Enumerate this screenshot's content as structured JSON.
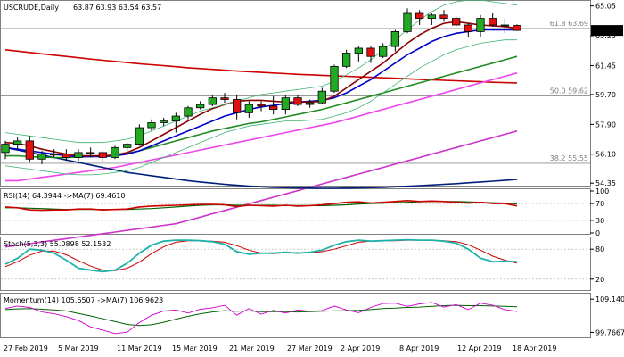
{
  "chart_data": {
    "type": "candlestick",
    "symbol_label": "USCRUDE,Daily",
    "ohlc_readout": "63.87 63.93 63.54 63.57",
    "price_tag": "63.57",
    "price_axis_labels": [
      "65.05",
      "63.25",
      "61.45",
      "59.70",
      "57.90",
      "56.10",
      "54.35"
    ],
    "date_labels": [
      "27 Feb 2019",
      "5 Mar 2019",
      "11 Mar 2019",
      "15 Mar 2019",
      "21 Mar 2019",
      "27 Mar 2019",
      "2 Apr 2019",
      "8 Apr 2019",
      "12 Apr 2019",
      "18 Apr 2019"
    ],
    "fib_levels": [
      {
        "label": "61.8 63.69",
        "value": 63.69
      },
      {
        "label": "50.0 59.62",
        "value": 59.62
      },
      {
        "label": "38.2 55.55",
        "value": 55.55
      }
    ],
    "price_range": [
      54.2,
      65.3
    ],
    "candles": [
      {
        "o": 56.2,
        "h": 56.9,
        "l": 55.8,
        "c": 56.7
      },
      {
        "o": 56.7,
        "h": 57.1,
        "l": 56.4,
        "c": 56.9
      },
      {
        "o": 56.9,
        "h": 57.2,
        "l": 55.6,
        "c": 55.8
      },
      {
        "o": 55.8,
        "h": 56.3,
        "l": 55.5,
        "c": 56.1
      },
      {
        "o": 56.1,
        "h": 56.4,
        "l": 55.9,
        "c": 56.1
      },
      {
        "o": 56.1,
        "h": 56.4,
        "l": 55.7,
        "c": 55.9
      },
      {
        "o": 55.9,
        "h": 56.4,
        "l": 55.7,
        "c": 56.2
      },
      {
        "o": 56.2,
        "h": 56.5,
        "l": 55.9,
        "c": 56.2
      },
      {
        "o": 56.2,
        "h": 56.3,
        "l": 55.6,
        "c": 55.9
      },
      {
        "o": 55.9,
        "h": 56.6,
        "l": 55.8,
        "c": 56.5
      },
      {
        "o": 56.5,
        "h": 56.8,
        "l": 56.3,
        "c": 56.7
      },
      {
        "o": 56.7,
        "h": 57.9,
        "l": 56.6,
        "c": 57.7
      },
      {
        "o": 57.7,
        "h": 58.2,
        "l": 57.5,
        "c": 58.0
      },
      {
        "o": 58.0,
        "h": 58.3,
        "l": 57.8,
        "c": 58.1
      },
      {
        "o": 58.1,
        "h": 58.6,
        "l": 57.4,
        "c": 58.4
      },
      {
        "o": 58.4,
        "h": 59.0,
        "l": 58.2,
        "c": 58.9
      },
      {
        "o": 58.9,
        "h": 59.3,
        "l": 58.8,
        "c": 59.1
      },
      {
        "o": 59.1,
        "h": 59.7,
        "l": 59.0,
        "c": 59.5
      },
      {
        "o": 59.5,
        "h": 59.8,
        "l": 59.2,
        "c": 59.4
      },
      {
        "o": 59.4,
        "h": 59.7,
        "l": 58.2,
        "c": 58.6
      },
      {
        "o": 58.6,
        "h": 59.3,
        "l": 58.3,
        "c": 59.1
      },
      {
        "o": 59.1,
        "h": 59.3,
        "l": 58.7,
        "c": 59.0
      },
      {
        "o": 59.0,
        "h": 59.6,
        "l": 58.5,
        "c": 58.8
      },
      {
        "o": 58.8,
        "h": 59.7,
        "l": 58.5,
        "c": 59.5
      },
      {
        "o": 59.5,
        "h": 59.7,
        "l": 59.0,
        "c": 59.1
      },
      {
        "o": 59.1,
        "h": 59.4,
        "l": 58.9,
        "c": 59.2
      },
      {
        "o": 59.2,
        "h": 60.1,
        "l": 59.1,
        "c": 59.9
      },
      {
        "o": 59.9,
        "h": 61.5,
        "l": 59.8,
        "c": 61.4
      },
      {
        "o": 61.4,
        "h": 62.4,
        "l": 61.3,
        "c": 62.2
      },
      {
        "o": 62.2,
        "h": 62.6,
        "l": 61.7,
        "c": 62.5
      },
      {
        "o": 62.5,
        "h": 62.6,
        "l": 61.6,
        "c": 62.0
      },
      {
        "o": 62.0,
        "h": 62.8,
        "l": 61.9,
        "c": 62.6
      },
      {
        "o": 62.6,
        "h": 63.6,
        "l": 62.3,
        "c": 63.5
      },
      {
        "o": 63.5,
        "h": 64.9,
        "l": 63.4,
        "c": 64.6
      },
      {
        "o": 64.6,
        "h": 64.8,
        "l": 63.9,
        "c": 64.3
      },
      {
        "o": 64.3,
        "h": 64.6,
        "l": 63.9,
        "c": 64.5
      },
      {
        "o": 64.5,
        "h": 64.8,
        "l": 64.1,
        "c": 64.3
      },
      {
        "o": 64.3,
        "h": 64.4,
        "l": 63.8,
        "c": 63.9
      },
      {
        "o": 63.9,
        "h": 64.0,
        "l": 63.2,
        "c": 63.5
      },
      {
        "o": 63.5,
        "h": 64.5,
        "l": 63.2,
        "c": 64.3
      },
      {
        "o": 64.3,
        "h": 64.6,
        "l": 63.8,
        "c": 63.9
      },
      {
        "o": 63.9,
        "h": 64.3,
        "l": 63.4,
        "c": 63.9
      },
      {
        "o": 63.87,
        "h": 63.93,
        "l": 63.54,
        "c": 63.57
      }
    ],
    "overlays": [
      {
        "color": "#cc0000",
        "values": [
          62.4,
          62.32,
          62.24,
          62.16,
          62.08,
          62.0,
          61.92,
          61.84,
          61.77,
          61.7,
          61.63,
          61.56,
          61.5,
          61.44,
          61.38,
          61.32,
          61.27,
          61.22,
          61.17,
          61.12,
          61.08,
          61.04,
          61.0,
          60.96,
          60.92,
          60.89,
          60.86,
          60.83,
          60.8,
          60.77,
          60.74,
          60.71,
          60.68,
          60.65,
          60.62,
          60.59,
          60.56,
          60.53,
          60.5,
          60.47,
          60.44,
          60.42,
          60.4
        ]
      },
      {
        "color": "#ee44ee",
        "values": [
          54.5,
          54.5,
          54.6,
          54.7,
          54.8,
          54.9,
          55.0,
          55.1,
          55.2,
          55.3,
          55.45,
          55.6,
          55.75,
          55.9,
          56.05,
          56.2,
          56.35,
          56.5,
          56.65,
          56.8,
          56.95,
          57.1,
          57.25,
          57.4,
          57.55,
          57.7,
          57.85,
          58.0,
          58.2,
          58.4,
          58.6,
          58.8,
          59.0,
          59.2,
          59.4,
          59.6,
          59.8,
          60.0,
          60.2,
          60.4,
          60.6,
          60.8,
          61.0
        ]
      },
      {
        "color": "#cc33cc",
        "values": [
          50.5,
          50.6,
          50.7,
          50.8,
          50.9,
          51.0,
          51.1,
          51.2,
          51.3,
          51.4,
          51.5,
          51.6,
          51.7,
          51.8,
          51.9,
          52.1,
          52.3,
          52.5,
          52.7,
          52.9,
          53.1,
          53.3,
          53.5,
          53.7,
          53.9,
          54.1,
          54.3,
          54.5,
          54.7,
          54.9,
          55.1,
          55.3,
          55.5,
          55.7,
          55.9,
          56.1,
          56.3,
          56.5,
          56.7,
          56.9,
          57.1,
          57.3,
          57.5
        ]
      },
      {
        "color": "#001f7a",
        "values": [
          56.5,
          56.35,
          56.2,
          56.05,
          55.9,
          55.75,
          55.6,
          55.45,
          55.3,
          55.15,
          55.0,
          54.9,
          54.8,
          54.7,
          54.6,
          54.5,
          54.42,
          54.35,
          54.28,
          54.22,
          54.17,
          54.13,
          54.1,
          54.08,
          54.06,
          54.05,
          54.04,
          54.04,
          54.05,
          54.06,
          54.08,
          54.1,
          54.13,
          54.16,
          54.2,
          54.24,
          54.28,
          54.32,
          54.37,
          54.42,
          54.47,
          54.52,
          54.58
        ]
      },
      {
        "color": "#228b22",
        "values": [
          56.0,
          56.0,
          55.95,
          55.92,
          55.9,
          55.9,
          55.92,
          55.95,
          56.0,
          56.05,
          56.15,
          56.3,
          56.5,
          56.7,
          56.9,
          57.1,
          57.3,
          57.5,
          57.65,
          57.8,
          57.95,
          58.05,
          58.2,
          58.35,
          58.5,
          58.65,
          58.8,
          59.0,
          59.2,
          59.4,
          59.6,
          59.8,
          60.0,
          60.2,
          60.4,
          60.6,
          60.8,
          61.0,
          61.2,
          61.4,
          61.6,
          61.8,
          62.0
        ]
      },
      {
        "color": "#0000cc",
        "values": [
          56.5,
          56.4,
          56.3,
          56.2,
          56.1,
          56.0,
          55.95,
          55.95,
          55.95,
          56.0,
          56.1,
          56.3,
          56.6,
          56.9,
          57.2,
          57.5,
          57.8,
          58.1,
          58.4,
          58.6,
          58.8,
          58.95,
          59.05,
          59.15,
          59.25,
          59.3,
          59.35,
          59.5,
          59.8,
          60.2,
          60.6,
          61.1,
          61.6,
          62.1,
          62.5,
          62.9,
          63.2,
          63.4,
          63.5,
          63.6,
          63.6,
          63.6,
          63.6
        ]
      },
      {
        "color": "#8b0000",
        "values": [
          56.8,
          56.75,
          56.6,
          56.4,
          56.25,
          56.1,
          56.0,
          56.0,
          56.0,
          56.05,
          56.2,
          56.5,
          56.9,
          57.3,
          57.7,
          58.1,
          58.5,
          58.85,
          59.1,
          59.3,
          59.35,
          59.35,
          59.3,
          59.25,
          59.25,
          59.25,
          59.3,
          59.6,
          60.1,
          60.6,
          61.1,
          61.6,
          62.2,
          62.8,
          63.3,
          63.7,
          64.0,
          64.1,
          64.0,
          63.9,
          63.85,
          63.8,
          63.7
        ]
      },
      {
        "color": "#3cb371",
        "values": [
          57.4,
          57.3,
          57.2,
          57.1,
          57.0,
          56.9,
          56.8,
          56.8,
          56.8,
          56.9,
          57.0,
          57.2,
          57.5,
          57.8,
          58.1,
          58.4,
          58.7,
          58.9,
          59.1,
          59.3,
          59.5,
          59.7,
          59.8,
          59.9,
          60.0,
          60.1,
          60.2,
          60.5,
          60.9,
          61.3,
          61.8,
          62.4,
          63.0,
          63.6,
          64.2,
          64.7,
          65.1,
          65.3,
          65.4,
          65.4,
          65.3,
          65.2,
          65.1
        ]
      },
      {
        "color": "#3cb371",
        "values": [
          55.4,
          55.3,
          55.2,
          55.1,
          55.0,
          54.9,
          54.85,
          54.85,
          54.9,
          55.0,
          55.1,
          55.3,
          55.6,
          55.9,
          56.2,
          56.5,
          56.8,
          57.1,
          57.4,
          57.6,
          57.8,
          57.9,
          58.0,
          58.1,
          58.1,
          58.15,
          58.2,
          58.4,
          58.6,
          58.9,
          59.3,
          59.8,
          60.3,
          60.8,
          61.3,
          61.7,
          62.1,
          62.4,
          62.6,
          62.8,
          62.9,
          63.0,
          63.0
        ]
      }
    ],
    "rsi": {
      "label": "RSI(14) 64.3944  ->MA(7) 69.4610",
      "range": [
        0,
        100
      ],
      "levels": [
        30,
        70
      ],
      "axis_labels": [
        "100",
        "70",
        "30",
        "0"
      ],
      "rsi_color": "#cc0000",
      "ma_color": "#006400",
      "rsi_values": [
        62,
        60,
        55,
        54,
        55,
        55,
        57,
        57,
        55,
        56,
        57,
        62,
        64,
        65,
        66,
        67,
        68,
        68,
        67,
        63,
        66,
        65,
        64,
        66,
        64,
        65,
        67,
        70,
        73,
        74,
        71,
        73,
        75,
        77,
        75,
        76,
        75,
        73,
        71,
        73,
        70,
        70,
        64.3944
      ],
      "ma_values": [
        60,
        60,
        59,
        58,
        57,
        56,
        56,
        56,
        56,
        56,
        56,
        57,
        58,
        60,
        62,
        64,
        66,
        67,
        67,
        66,
        66,
        66,
        66,
        65,
        65,
        65,
        65,
        66,
        67,
        69,
        70,
        71,
        72,
        73,
        74,
        75,
        75,
        75,
        74,
        73,
        72,
        71,
        69.461
      ]
    },
    "stoch": {
      "label": "Stoch(5,3,3) 55.0898 52.1532",
      "range": [
        0,
        100
      ],
      "levels": [
        20,
        80
      ],
      "axis_labels": [
        "80",
        "20"
      ],
      "k_color": "#20b2aa",
      "d_color": "#cc0000",
      "k_values": [
        50,
        62,
        80,
        78,
        72,
        58,
        42,
        38,
        35,
        38,
        52,
        72,
        88,
        96,
        98,
        98,
        97,
        95,
        90,
        75,
        70,
        72,
        72,
        74,
        72,
        74,
        78,
        88,
        95,
        98,
        96,
        97,
        98,
        99,
        98,
        98,
        96,
        92,
        80,
        62,
        55,
        56,
        55.0898
      ],
      "d_values": [
        45,
        55,
        68,
        76,
        76,
        69,
        57,
        46,
        38,
        37,
        42,
        54,
        71,
        85,
        94,
        97,
        97,
        96,
        94,
        87,
        78,
        72,
        71,
        73,
        73,
        73,
        75,
        80,
        87,
        94,
        96,
        97,
        97,
        98,
        98,
        98,
        97,
        95,
        89,
        78,
        66,
        58,
        52.1532
      ]
    },
    "momentum": {
      "label": "Momentum(14) 105.6507  ->MA(7) 106.9623",
      "axis_labels": [
        "109.1408",
        "99.7667"
      ],
      "range": [
        98.6,
        110.2
      ],
      "mom_color": "#cc00cc",
      "ma_color": "#006400",
      "mom_values": [
        106.5,
        107.2,
        106.8,
        105.5,
        105.0,
        104.2,
        103.1,
        101.3,
        100.4,
        99.4,
        99.8,
        102.5,
        104.6,
        105.8,
        106.1,
        105.2,
        106.3,
        106.7,
        107.4,
        104.6,
        106.5,
        104.9,
        106.0,
        105.2,
        106.1,
        105.7,
        105.9,
        107.2,
        106.1,
        105.3,
        106.8,
        107.9,
        108.0,
        107.1,
        107.8,
        108.2,
        106.9,
        107.6,
        106.2,
        108.0,
        107.4,
        106.2,
        105.6507
      ],
      "ma_values": [
        106.2,
        106.4,
        106.5,
        106.3,
        106.1,
        105.8,
        105.1,
        104.4,
        103.6,
        102.8,
        102.0,
        101.7,
        101.9,
        102.6,
        103.5,
        104.3,
        105.0,
        105.5,
        105.9,
        105.7,
        105.8,
        105.6,
        105.6,
        105.6,
        105.5,
        105.6,
        105.7,
        105.8,
        105.9,
        106.0,
        106.2,
        106.5,
        106.6,
        106.8,
        106.9,
        107.1,
        107.3,
        107.4,
        107.3,
        107.3,
        107.2,
        107.1,
        106.9623
      ]
    }
  }
}
